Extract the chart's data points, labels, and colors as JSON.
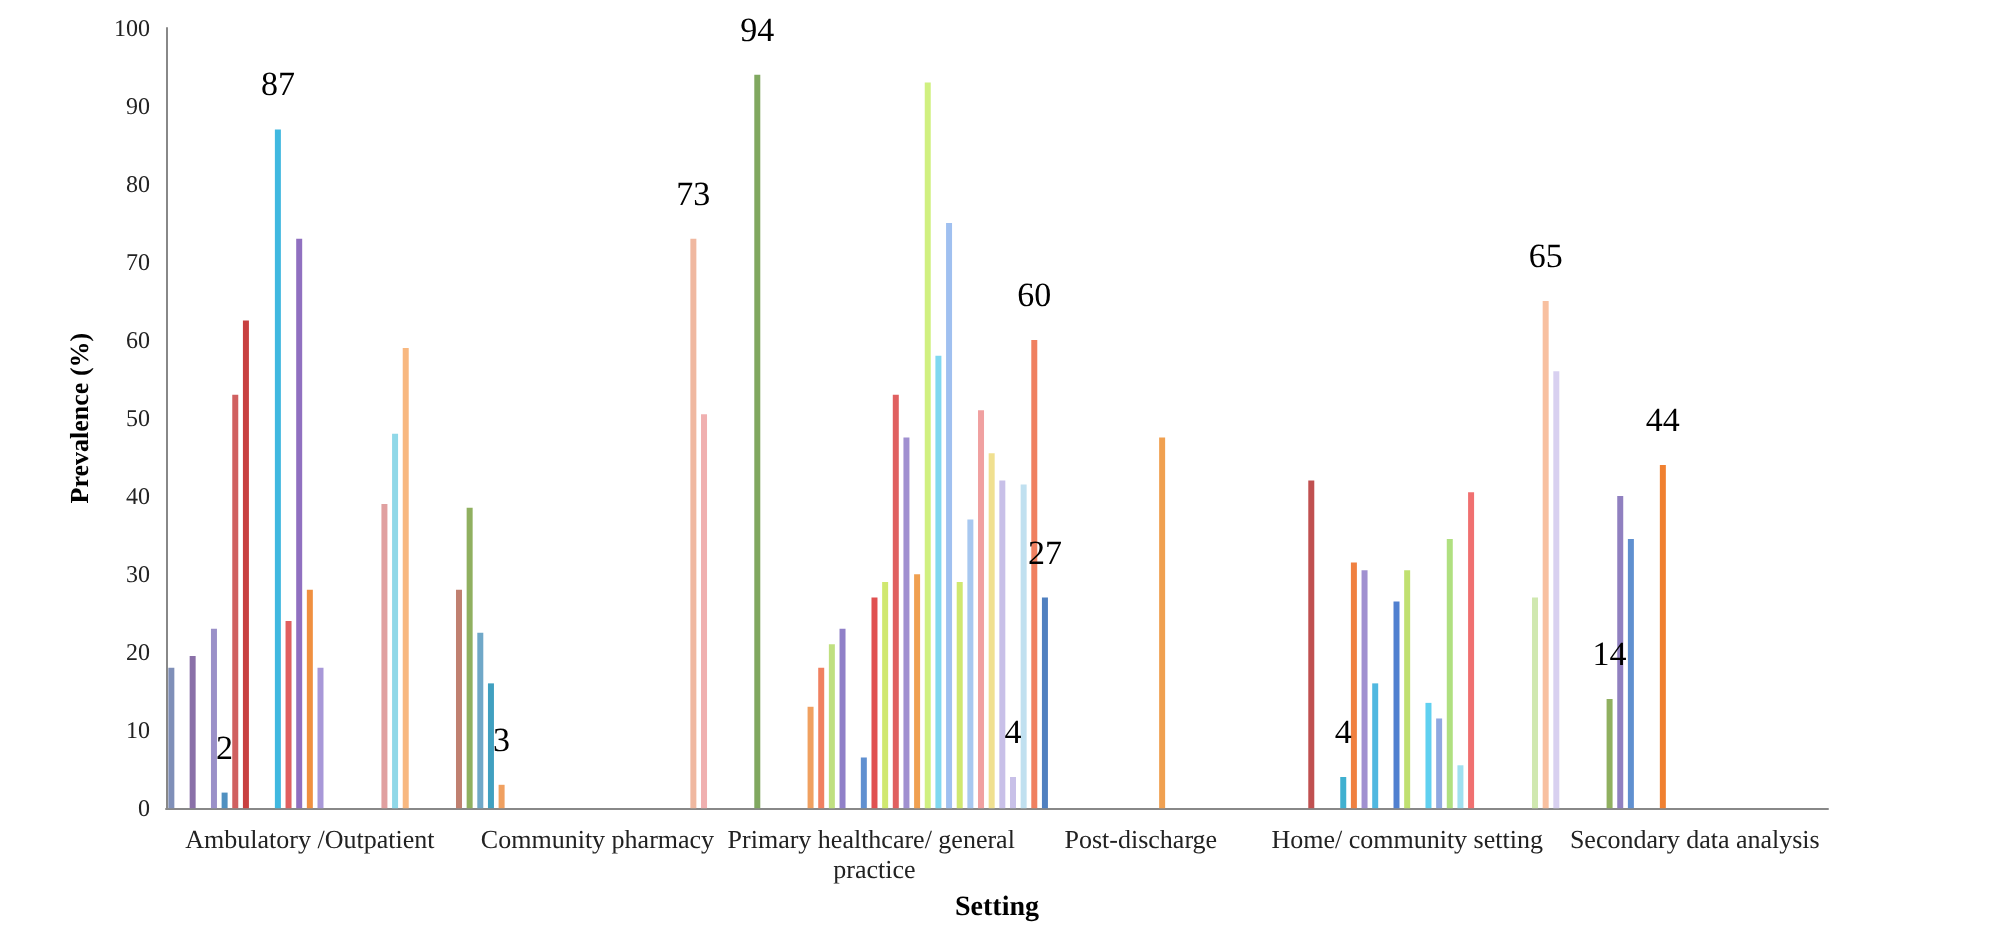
{
  "chart_data": {
    "type": "bar",
    "xlabel": "Setting",
    "ylabel": "Prevalence (%)",
    "categories": [
      null,
      null,
      null,
      null,
      null,
      null,
      null,
      null,
      null,
      null,
      null,
      null,
      null,
      "Ambulatory /Outpatient",
      null,
      null,
      null,
      null,
      null,
      null,
      null,
      null,
      null,
      null,
      null,
      null,
      null,
      null,
      null,
      null,
      null,
      null,
      null,
      null,
      null,
      null,
      null,
      null,
      null,
      null,
      "Community pharmacy",
      null,
      null,
      null,
      null,
      null,
      null,
      null,
      null,
      null,
      null,
      null,
      null,
      null,
      null,
      null,
      null,
      null,
      null,
      null,
      null,
      null,
      null,
      null,
      null,
      null,
      "Primary healthcare/ general practice",
      null,
      null,
      null,
      null,
      null,
      null,
      null,
      null,
      null,
      null,
      null,
      null,
      null,
      null,
      null,
      null,
      null,
      null,
      null,
      null,
      null,
      null,
      null,
      null,
      "Post-discharge",
      null,
      null,
      null,
      null,
      null,
      null,
      null,
      null,
      null,
      null,
      null,
      null,
      null,
      null,
      null,
      null,
      null,
      null,
      null,
      null,
      null,
      null,
      null,
      null,
      "Home/ community setting",
      null,
      null,
      null,
      null,
      null,
      null,
      null,
      null,
      null,
      null,
      null,
      null,
      null,
      null,
      null,
      null,
      null,
      null,
      null,
      null,
      null,
      null,
      null,
      null,
      null,
      null,
      "Secondary data analysis",
      null,
      null,
      null,
      null,
      null,
      null,
      null,
      null,
      null,
      null,
      null,
      null
    ],
    "values": [
      18,
      null,
      19.5,
      null,
      23,
      2,
      53,
      62.5,
      null,
      null,
      87,
      24,
      73,
      28,
      18,
      null,
      null,
      null,
      null,
      null,
      39,
      48,
      59,
      null,
      null,
      null,
      null,
      28,
      38.5,
      22.5,
      16,
      3,
      null,
      null,
      null,
      null,
      null,
      null,
      null,
      null,
      null,
      null,
      null,
      null,
      null,
      null,
      null,
      null,
      null,
      73,
      50.5,
      null,
      null,
      null,
      null,
      94,
      null,
      null,
      null,
      null,
      13,
      18,
      21,
      23,
      null,
      6.5,
      27,
      29,
      53,
      47.5,
      30,
      93,
      58,
      75,
      29,
      37,
      51,
      45.5,
      42,
      4,
      41.5,
      60,
      27,
      null,
      null,
      null,
      null,
      null,
      null,
      null,
      null,
      null,
      null,
      47.5,
      null,
      null,
      null,
      null,
      null,
      null,
      null,
      null,
      null,
      null,
      null,
      null,
      null,
      42,
      null,
      null,
      4,
      31.5,
      30.5,
      16,
      null,
      26.5,
      30.5,
      null,
      13.5,
      11.5,
      34.5,
      5.5,
      40.5,
      null,
      null,
      null,
      null,
      null,
      27,
      65,
      56,
      null,
      null,
      null,
      null,
      14,
      40,
      34.5,
      null,
      null,
      44,
      null,
      null,
      null,
      null,
      null,
      null,
      null,
      null,
      null,
      null,
      null,
      null,
      null,
      null,
      null
    ],
    "colors": [
      "#7f8fb8",
      null,
      "#8a70a8",
      null,
      "#9a90c8",
      "#5090c0",
      "#d06060",
      "#c84040",
      null,
      null,
      "#40b8e0",
      "#e06060",
      "#9070c0",
      "#f09040",
      "#a898d8",
      null,
      null,
      null,
      null,
      null,
      "#e0a0a0",
      "#90d8e8",
      "#f8b880",
      null,
      null,
      null,
      null,
      "#c08070",
      "#90b060",
      "#70a8c8",
      "#40a0c0",
      "#f0a060",
      null,
      null,
      null,
      null,
      null,
      null,
      null,
      null,
      null,
      null,
      null,
      null,
      null,
      null,
      null,
      null,
      null,
      "#f0b8a0",
      "#f0b0b0",
      null,
      null,
      null,
      null,
      "#80a860",
      null,
      null,
      null,
      null,
      "#f0a060",
      "#f08060",
      "#c0e080",
      "#9080c8",
      null,
      "#6090d0",
      "#e05050",
      "#d0e870",
      "#e06060",
      "#a090d0",
      "#f0a050",
      "#d0f080",
      "#80d8f0",
      "#a0c0f0",
      "#d0e870",
      "#a8c8f0",
      "#f0a0a0",
      "#f0e090",
      "#c8c0e8",
      "#c8c0e8",
      "#c0e0f0",
      "#f08060",
      "#5080c0",
      null,
      null,
      null,
      null,
      null,
      null,
      null,
      null,
      null,
      null,
      "#f0a050",
      null,
      null,
      null,
      null,
      null,
      null,
      null,
      null,
      null,
      null,
      null,
      null,
      null,
      "#c05050",
      null,
      null,
      "#40b0d0",
      "#f08040",
      "#a090d0",
      "#50b8e0",
      null,
      "#5080d0",
      "#c0e070",
      null,
      "#60d0f0",
      "#90a8e0",
      "#b0e080",
      "#a0e0f0",
      "#f07070",
      null,
      null,
      null,
      null,
      null,
      "#d0e8b0",
      "#f8c0a0",
      "#d8d0f0",
      null,
      null,
      null,
      null,
      "#90b060",
      "#9080c0",
      "#6090d0",
      null,
      null,
      "#f08030",
      null,
      null,
      null,
      null,
      null,
      null,
      null,
      null,
      null,
      null,
      null,
      null,
      null,
      null,
      null
    ],
    "value_labels": [
      null,
      null,
      null,
      null,
      null,
      "2",
      null,
      null,
      null,
      null,
      "87",
      null,
      null,
      null,
      null,
      null,
      null,
      null,
      null,
      null,
      null,
      null,
      null,
      null,
      null,
      null,
      null,
      null,
      null,
      null,
      null,
      "3",
      null,
      null,
      null,
      null,
      null,
      null,
      null,
      null,
      null,
      null,
      null,
      null,
      null,
      null,
      null,
      null,
      null,
      "73",
      null,
      null,
      null,
      null,
      null,
      "94",
      null,
      null,
      null,
      null,
      null,
      null,
      null,
      null,
      null,
      null,
      null,
      null,
      null,
      null,
      null,
      null,
      null,
      null,
      null,
      null,
      null,
      null,
      null,
      "4",
      null,
      "60",
      "27",
      null,
      null,
      null,
      null,
      null,
      null,
      null,
      null,
      null,
      null,
      null,
      null,
      null,
      null,
      null,
      null,
      null,
      null,
      null,
      null,
      null,
      null,
      null,
      null,
      null,
      null,
      null,
      "4",
      null,
      null,
      null,
      null,
      null,
      null,
      null,
      null,
      null,
      null,
      null,
      null,
      null,
      null,
      null,
      null,
      null,
      null,
      "65",
      null,
      null,
      null,
      null,
      null,
      "14",
      null,
      null,
      null,
      null,
      "44",
      null,
      null,
      null,
      null,
      null,
      null,
      null,
      null,
      null,
      null,
      null,
      null,
      null,
      null,
      null
    ],
    "ylim": [
      0,
      100
    ],
    "yticks": [
      0,
      10,
      20,
      30,
      40,
      50,
      60,
      70,
      80,
      90,
      100
    ],
    "grid": false
  }
}
